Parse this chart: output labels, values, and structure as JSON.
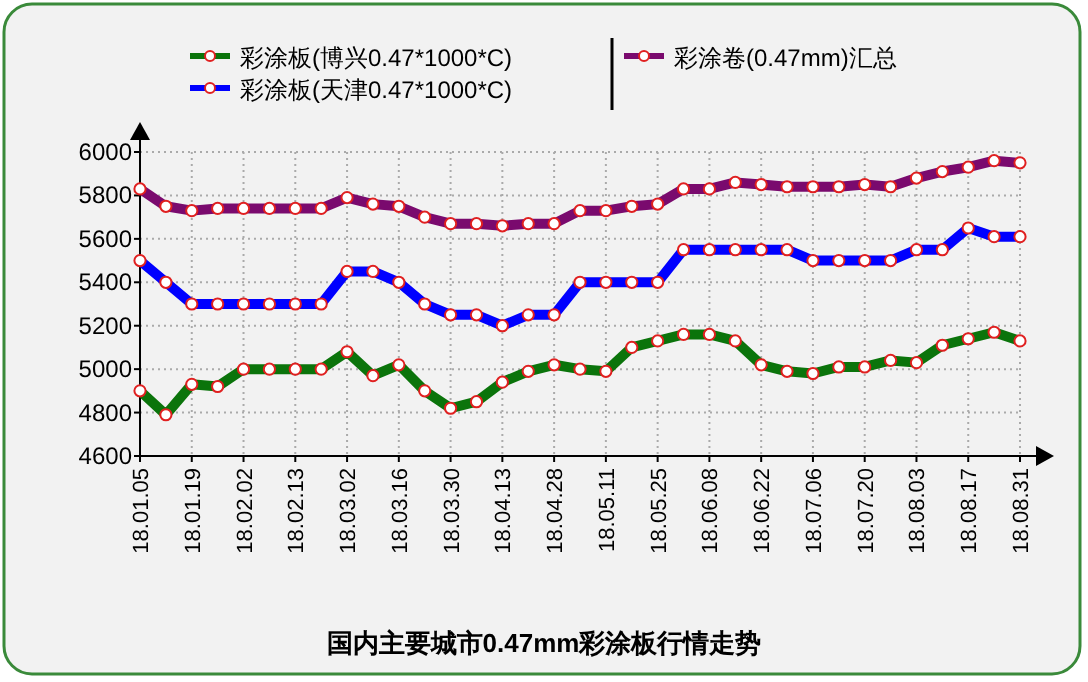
{
  "chart_data": {
    "type": "line",
    "title": "国内主要城市0.47mm彩涂板行情走势",
    "categories": [
      "18.01.05",
      null,
      "18.01.19",
      null,
      "18.02.02",
      null,
      "18.02.13",
      null,
      "18.03.02",
      null,
      "18.03.16",
      null,
      "18.03.30",
      null,
      "18.04.13",
      null,
      "18.04.28",
      null,
      "18.05.11",
      null,
      "18.05.25",
      null,
      "18.06.08",
      null,
      "18.06.22",
      null,
      "18.07.06",
      null,
      "18.07.20",
      null,
      "18.08.03",
      null,
      "18.08.17",
      null,
      "18.08.31"
    ],
    "series": [
      {
        "name": "彩涂板(博兴0.47*1000*C)",
        "color": "#0b740b",
        "values": [
          4900,
          4790,
          4930,
          4920,
          5000,
          5000,
          5000,
          5000,
          5080,
          4970,
          5020,
          4900,
          4820,
          4850,
          4940,
          4990,
          5020,
          5000,
          4990,
          5100,
          5130,
          5160,
          5160,
          5130,
          5020,
          4990,
          4980,
          5010,
          5010,
          5040,
          5030,
          5110,
          5140,
          5170,
          5130
        ]
      },
      {
        "name": "彩涂板(天津0.47*1000*C)",
        "color": "#0000ff",
        "values": [
          5500,
          5400,
          5300,
          5300,
          5300,
          5300,
          5300,
          5300,
          5450,
          5450,
          5400,
          5300,
          5250,
          5250,
          5200,
          5250,
          5250,
          5400,
          5400,
          5400,
          5400,
          5550,
          5550,
          5550,
          5550,
          5550,
          5500,
          5500,
          5500,
          5500,
          5550,
          5550,
          5650,
          5610,
          5610
        ]
      },
      {
        "name": "彩涂卷(0.47mm)汇总",
        "color": "#7a0a6e",
        "values": [
          5830,
          5750,
          5730,
          5740,
          5740,
          5740,
          5740,
          5740,
          5790,
          5760,
          5750,
          5700,
          5670,
          5670,
          5660,
          5670,
          5670,
          5730,
          5730,
          5750,
          5760,
          5830,
          5830,
          5860,
          5850,
          5840,
          5840,
          5840,
          5850,
          5840,
          5880,
          5910,
          5930,
          5960,
          5950
        ]
      }
    ],
    "ylim": [
      4600,
      6000
    ],
    "yticks": [
      4600,
      4800,
      5000,
      5200,
      5400,
      5600,
      5800,
      6000
    ],
    "grid": true,
    "legend": "top",
    "marker": "circle",
    "line_style": "solid"
  }
}
